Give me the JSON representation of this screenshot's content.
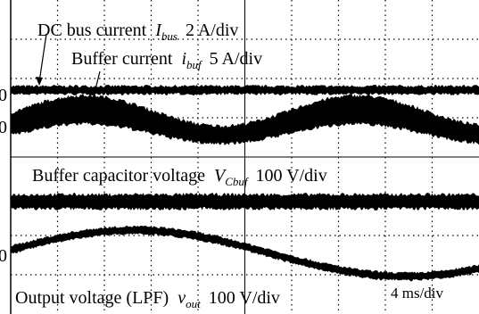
{
  "annotations": [
    {
      "text": "DC bus current",
      "symbol": "I",
      "subscript": "bus",
      "scale": "2 A/div"
    },
    {
      "text": "Buffer current",
      "symbol": "i",
      "subscript": "buf",
      "scale": "5 A/div"
    },
    {
      "text": "Buffer capacitor voltage",
      "symbol": "V",
      "subscript": "Cbuf",
      "scale": "100 V/div"
    },
    {
      "text": "Output voltage (LPF)",
      "symbol": "v",
      "subscript": "out",
      "scale": "100 V/div"
    }
  ],
  "zero_markers": [
    "0",
    "0",
    "0"
  ],
  "time_scale": "4 ms/div"
}
